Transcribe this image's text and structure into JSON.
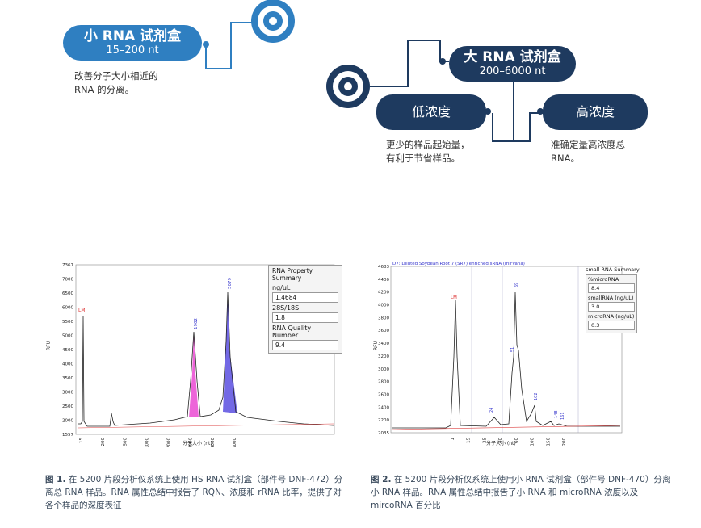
{
  "small_kit": {
    "title": "小 RNA 试剂盒",
    "range": "15–200 nt",
    "desc": "改善分子大小相近的\nRNA 的分离。"
  },
  "large_kit": {
    "title": "大 RNA 试剂盒",
    "range": "200–6000 nt"
  },
  "low_conc": {
    "label": "低浓度",
    "desc": "更少的样品起始量，\n有利于节省样品。"
  },
  "high_conc": {
    "label": "高浓度",
    "desc": "准确定量高浓度总\nRNA。"
  },
  "colors": {
    "light_blue": "#2f7fc1",
    "navy": "#1e3a5f",
    "pink": "#e83fcf",
    "purple": "#5b4fe0"
  },
  "chart1": {
    "y_ticks": [
      "7367",
      "7000",
      "6500",
      "6000",
      "5500",
      "5000",
      "4500",
      "4000",
      "3500",
      "3000",
      "2500",
      "2000",
      "1557"
    ],
    "x_ticks": [
      "15",
      "200",
      "500",
      "1000",
      "2000",
      "3000",
      "4000",
      "6000"
    ],
    "ylabel": "RFU",
    "xlabel": "分子大小 (nt)",
    "peak_labels": {
      "lm": "LM",
      "p1": "1902",
      "p2": "5079"
    },
    "summary": {
      "title": "RNA Property Summary",
      "fields": [
        {
          "label": "ng/uL",
          "value": "1.4684"
        },
        {
          "label": "28S/18S",
          "value": "1.8"
        },
        {
          "label": "RNA Quality Number",
          "value": "9.4"
        }
      ]
    }
  },
  "chart2": {
    "title": "D7: Diluted Soybean Root 7 (SR7) enriched sRNA (mirVana)",
    "y_ticks": [
      "4683",
      "4400",
      "4200",
      "4000",
      "3800",
      "3600",
      "3400",
      "3200",
      "3000",
      "2800",
      "2600",
      "2400",
      "2200",
      "2035"
    ],
    "x_ticks": [
      "1",
      "15",
      "25",
      "40",
      "60",
      "100",
      "150",
      "200"
    ],
    "ylabel": "RFU",
    "xlabel": "分子大小 (nt)",
    "peak_labels": {
      "lm": "LM",
      "p1": "24",
      "p2": "51",
      "p3": "69",
      "p4": "102",
      "p5": "148",
      "p6": "161"
    },
    "summary": {
      "title": "small RNA Summary",
      "fields": [
        {
          "label": "%microRNA",
          "value": "8.4"
        },
        {
          "label": "smallRNA (ng/uL)",
          "value": "3.0"
        },
        {
          "label": "microRNA (ng/uL)",
          "value": "0.3"
        }
      ]
    }
  },
  "caption1": {
    "bold": "图 1.",
    "text": " 在 5200 片段分析仪系统上使用 HS RNA 试剂盒（部件号 DNF-472）分离总 RNA 样品。RNA 属性总结中报告了 RQN、浓度和 rRNA 比率，提供了对各个样品的深度表征"
  },
  "caption2": {
    "bold": "图 2.",
    "text": " 在 5200 片段分析仪系统上使用小 RNA 试剂盒（部件号 DNF-470）分离小 RNA 样品。RNA 属性总结中报告了小 RNA 和 microRNA 浓度以及 mircoRNA 百分比"
  }
}
